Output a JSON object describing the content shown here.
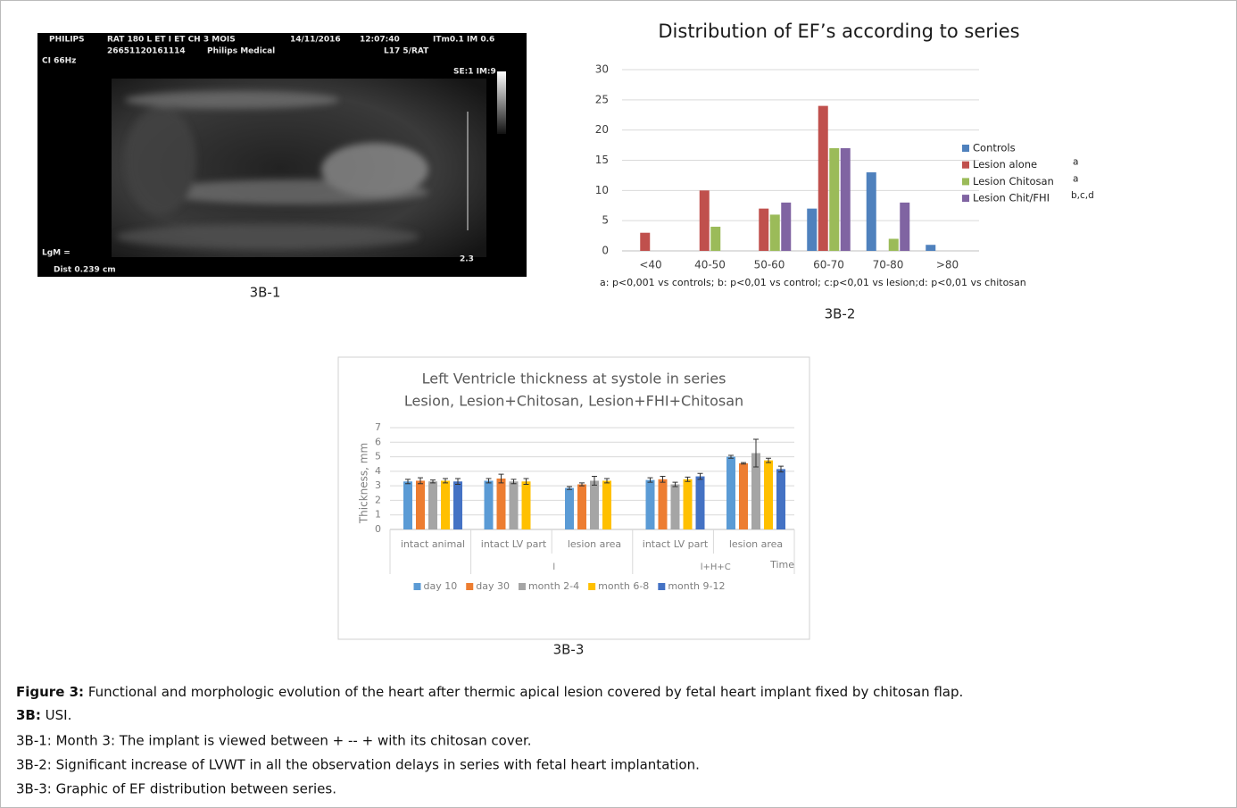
{
  "image_panel": {
    "label": "3B-1",
    "overlay": [
      "PHILIPS",
      "RAT 180 L ET I ET CH 3 MOIS",
      "14/11/2016",
      "12:07:40",
      "ITm0.1  IM 0.6",
      "26651120161114",
      "Philips Medical",
      "L17 5/RAT",
      "CI 66Hz",
      "SE:1 IM:9",
      "LgM =",
      "Dist 0.239 cm",
      "2.3"
    ]
  },
  "chart_data": [
    {
      "type": "bar",
      "panel_label": "3B-2",
      "title": "Distribution of EF’s according to series",
      "categories": [
        "<40",
        "40-50",
        "50-60",
        "60-70",
        "70-80",
        ">80"
      ],
      "series": [
        {
          "name": "Controls",
          "color": "#4f81bd",
          "values": [
            0,
            0,
            0,
            7,
            13,
            1
          ]
        },
        {
          "name": "Lesion alone",
          "note": "a",
          "color": "#c0504d",
          "values": [
            3,
            10,
            7,
            24,
            0,
            0
          ]
        },
        {
          "name": "Lesion Chitosan",
          "note": "a",
          "color": "#9bbb59",
          "values": [
            0,
            4,
            6,
            17,
            2,
            0
          ]
        },
        {
          "name": "Lesion Chit/FHI",
          "note": "b,c,d",
          "color": "#8064a2",
          "values": [
            0,
            0,
            8,
            17,
            8,
            0
          ]
        }
      ],
      "ylim": [
        0,
        30
      ],
      "yticks": [
        0,
        5,
        10,
        15,
        20,
        25,
        30
      ],
      "grid": true,
      "legend": "right",
      "footnote": "a: p<0,001 vs controls; b: p<0,01 vs control; c:p<0,01 vs lesion;d: p<0,01 vs chitosan"
    },
    {
      "type": "bar",
      "panel_label": "3B-3",
      "title": [
        "Left Ventricle thickness at systole in series",
        "Lesion, Lesion+Chitosan, Lesion+FHI+Chitosan"
      ],
      "y_label": "Thickness, mm",
      "x_label": "Time",
      "categories": [
        "intact animal",
        "intact LV part",
        "lesion area",
        "intact LV part",
        "lesion area"
      ],
      "category_groups": [
        null,
        "l",
        "l",
        "l+H+C",
        "l+H+C"
      ],
      "series": [
        {
          "name": "day 10",
          "color": "#5b9bd5",
          "values": [
            3.3,
            3.35,
            2.85,
            3.4,
            5.0
          ],
          "errors": [
            0.15,
            0.15,
            0.1,
            0.15,
            0.1
          ]
        },
        {
          "name": "day 30",
          "color": "#ed7d31",
          "values": [
            3.35,
            3.5,
            3.1,
            3.45,
            4.55
          ],
          "errors": [
            0.2,
            0.3,
            0.1,
            0.2,
            0.05
          ]
        },
        {
          "name": "month 2-4",
          "color": "#a5a5a5",
          "values": [
            3.3,
            3.3,
            3.35,
            3.1,
            5.25
          ],
          "errors": [
            0.1,
            0.15,
            0.3,
            0.15,
            0.95
          ]
        },
        {
          "name": "month 6-8",
          "color": "#ffc000",
          "values": [
            3.35,
            3.3,
            3.35,
            3.45,
            4.75
          ],
          "errors": [
            0.15,
            0.2,
            0.15,
            0.15,
            0.15
          ]
        },
        {
          "name": "month 9-12",
          "color": "#4472c4",
          "values": [
            3.3,
            null,
            null,
            3.65,
            4.15
          ],
          "errors": [
            0.2,
            null,
            null,
            0.2,
            0.2
          ]
        }
      ],
      "ylim": [
        0,
        7
      ],
      "yticks": [
        0,
        1,
        2,
        3,
        4,
        5,
        6,
        7
      ],
      "grid": true,
      "legend": "bottom"
    }
  ],
  "caption": {
    "figure_label": "Figure 3:",
    "figure_text": " Functional and morphologic evolution of the heart after thermic apical lesion covered by fetal heart implant fixed by chitosan flap.",
    "sub_label": "3B:",
    "sub_text": " USI.",
    "lines": [
      "3B-1: Month 3: The implant is viewed between + -- + with its chitosan cover.",
      "3B-2: Significant increase of LVWT in all the observation delays in series with fetal heart implantation.",
      "3B-3: Graphic of EF distribution between series."
    ]
  }
}
